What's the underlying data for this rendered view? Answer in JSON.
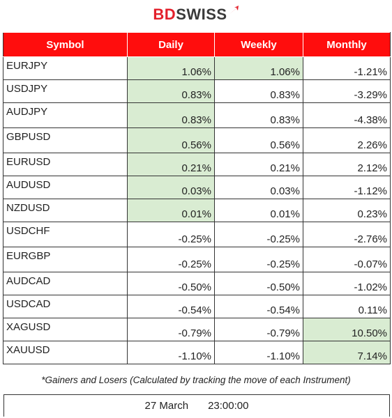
{
  "brand": {
    "part1": "BD",
    "part2": "SWISS",
    "accent": "#e3202b",
    "header_bg": "#ff0d0d",
    "gain_bg": "#d9ecd2"
  },
  "table": {
    "headers": [
      "Symbol",
      "Daily",
      "Weekly",
      "Monthly"
    ],
    "rows": [
      {
        "symbol": "EURJPY",
        "daily": "1.06%",
        "weekly": "1.06%",
        "monthly": "-1.21%"
      },
      {
        "symbol": "USDJPY",
        "daily": "0.83%",
        "weekly": "0.83%",
        "monthly": "-3.29%"
      },
      {
        "symbol": "AUDJPY",
        "daily": "0.83%",
        "weekly": "0.83%",
        "monthly": "-4.38%"
      },
      {
        "symbol": "GBPUSD",
        "daily": "0.56%",
        "weekly": "0.56%",
        "monthly": "2.26%"
      },
      {
        "symbol": "EURUSD",
        "daily": "0.21%",
        "weekly": "0.21%",
        "monthly": "2.12%"
      },
      {
        "symbol": "AUDUSD",
        "daily": "0.03%",
        "weekly": "0.03%",
        "monthly": "-1.12%"
      },
      {
        "symbol": "NZDUSD",
        "daily": "0.01%",
        "weekly": "0.01%",
        "monthly": "0.23%"
      },
      {
        "symbol": "USDCHF",
        "daily": "-0.25%",
        "weekly": "-0.25%",
        "monthly": "-2.76%"
      },
      {
        "symbol": "EURGBP",
        "daily": "-0.25%",
        "weekly": "-0.25%",
        "monthly": "-0.07%"
      },
      {
        "symbol": "AUDCAD",
        "daily": "-0.50%",
        "weekly": "-0.50%",
        "monthly": "-1.02%"
      },
      {
        "symbol": "USDCAD",
        "daily": "-0.54%",
        "weekly": "-0.54%",
        "monthly": "0.11%"
      },
      {
        "symbol": "XAGUSD",
        "daily": "-0.79%",
        "weekly": "-0.79%",
        "monthly": "10.50%"
      },
      {
        "symbol": "XAUUSD",
        "daily": "-1.10%",
        "weekly": "-1.10%",
        "monthly": "7.14%"
      }
    ],
    "highlight": {
      "daily": [
        true,
        true,
        true,
        true,
        true,
        true,
        true,
        false,
        false,
        false,
        false,
        false,
        false
      ],
      "weekly": [
        true,
        false,
        false,
        false,
        false,
        false,
        false,
        false,
        false,
        false,
        false,
        false,
        false
      ],
      "monthly": [
        false,
        false,
        false,
        false,
        false,
        false,
        false,
        false,
        false,
        false,
        false,
        true,
        true
      ]
    }
  },
  "footnote": "*Gainers and Losers (Calculated by tracking the move of each Instrument)",
  "timestamp": {
    "date": "27 March",
    "time": "23:00:00"
  }
}
